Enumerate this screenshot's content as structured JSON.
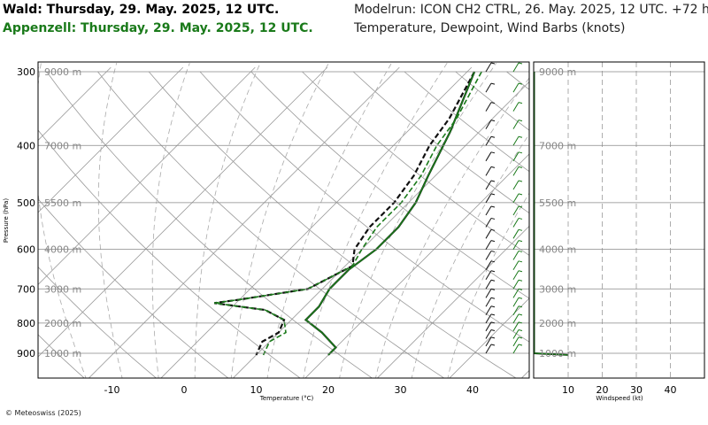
{
  "header": {
    "title_wald": "Wald: Thursday, 29. May. 2025, 12 UTC.",
    "title_appenzell": "Appenzell: Thursday, 29. May. 2025, 12 UTC.",
    "modelrun": "Modelrun: ICON CH2 CTRL, 26. May. 2025, 12 UTC. +72 h",
    "subtitle": "Temperature, Dewpoint, Wind Barbs (knots)"
  },
  "footer": {
    "copyright": "© Meteoswiss (2025)"
  },
  "colors": {
    "wald": "#111111",
    "appenzell": "#1a7a1a",
    "grid": "#999999",
    "frame": "#000000"
  },
  "chart_data": [
    {
      "type": "line",
      "name": "skew-t",
      "xlabel": "Temperature (°C)",
      "ylabel": "Pressure (hPa)",
      "x_ticks": [
        -10,
        0,
        10,
        20,
        30,
        40
      ],
      "xlim": [
        -25,
        47
      ],
      "y_ticks": [
        300,
        400,
        500,
        600,
        700,
        800,
        900
      ],
      "ylim": [
        1000,
        295
      ],
      "y_scale": "log",
      "height_labels": [
        {
          "p": 300,
          "label": "9000 m"
        },
        {
          "p": 400,
          "label": "7000 m"
        },
        {
          "p": 500,
          "label": "5500 m"
        },
        {
          "p": 600,
          "label": "4000 m"
        },
        {
          "p": 700,
          "label": "3000 m"
        },
        {
          "p": 800,
          "label": "2000 m"
        },
        {
          "p": 900,
          "label": "1000 m"
        }
      ],
      "series": [
        {
          "station": "Wald",
          "variable": "temperature",
          "style": "solid",
          "points": [
            [
              1,
              300
            ],
            [
              6,
              380
            ],
            [
              9,
              450
            ],
            [
              11,
              500
            ],
            [
              12,
              550
            ],
            [
              12,
              600
            ],
            [
              11,
              650
            ],
            [
              11,
              700
            ],
            [
              12,
              750
            ],
            [
              12,
              790
            ],
            [
              16,
              830
            ],
            [
              20,
              880
            ],
            [
              20,
              906
            ]
          ]
        },
        {
          "station": "Wald",
          "variable": "dewpoint",
          "style": "dashed",
          "points": [
            [
              1,
              300
            ],
            [
              4,
              360
            ],
            [
              5,
              400
            ],
            [
              7,
              450
            ],
            [
              8,
              500
            ],
            [
              8,
              550
            ],
            [
              9,
              600
            ],
            [
              11,
              640
            ],
            [
              8,
              700
            ],
            [
              0,
              730
            ],
            [
              -3,
              740
            ],
            [
              5,
              760
            ],
            [
              9,
              790
            ],
            [
              10,
              830
            ],
            [
              9,
              860
            ],
            [
              10,
              906
            ]
          ]
        },
        {
          "station": "Appenzell",
          "variable": "temperature",
          "style": "solid",
          "points": [
            [
              1,
              300
            ],
            [
              6,
              380
            ],
            [
              9,
              450
            ],
            [
              11,
              500
            ],
            [
              12,
              550
            ],
            [
              12,
              600
            ],
            [
              11,
              650
            ],
            [
              11,
              700
            ],
            [
              12,
              750
            ],
            [
              12,
              790
            ],
            [
              16,
              830
            ],
            [
              20,
              880
            ],
            [
              20,
              906
            ]
          ]
        },
        {
          "station": "Appenzell",
          "variable": "dewpoint",
          "style": "dashed",
          "points": [
            [
              2,
              300
            ],
            [
              5,
              360
            ],
            [
              6,
              400
            ],
            [
              8,
              450
            ],
            [
              9,
              500
            ],
            [
              9,
              550
            ],
            [
              10,
              600
            ],
            [
              11,
              640
            ],
            [
              8,
              700
            ],
            [
              0,
              730
            ],
            [
              -3,
              740
            ],
            [
              5,
              760
            ],
            [
              9,
              790
            ],
            [
              11,
              830
            ],
            [
              10,
              860
            ],
            [
              11,
              906
            ]
          ]
        }
      ]
    },
    {
      "type": "line",
      "name": "windspeed",
      "xlabel": "Windspeed (kt)",
      "x_ticks": [
        10,
        20,
        30,
        40
      ],
      "xlim": [
        0,
        50
      ],
      "series": [
        {
          "station": "Wald",
          "points": [
            [
              0,
              300
            ],
            [
              0,
              900
            ],
            [
              10,
              906
            ]
          ]
        },
        {
          "station": "Appenzell",
          "points": [
            [
              0,
              300
            ],
            [
              0,
              900
            ],
            [
              10,
              906
            ]
          ]
        }
      ]
    }
  ]
}
